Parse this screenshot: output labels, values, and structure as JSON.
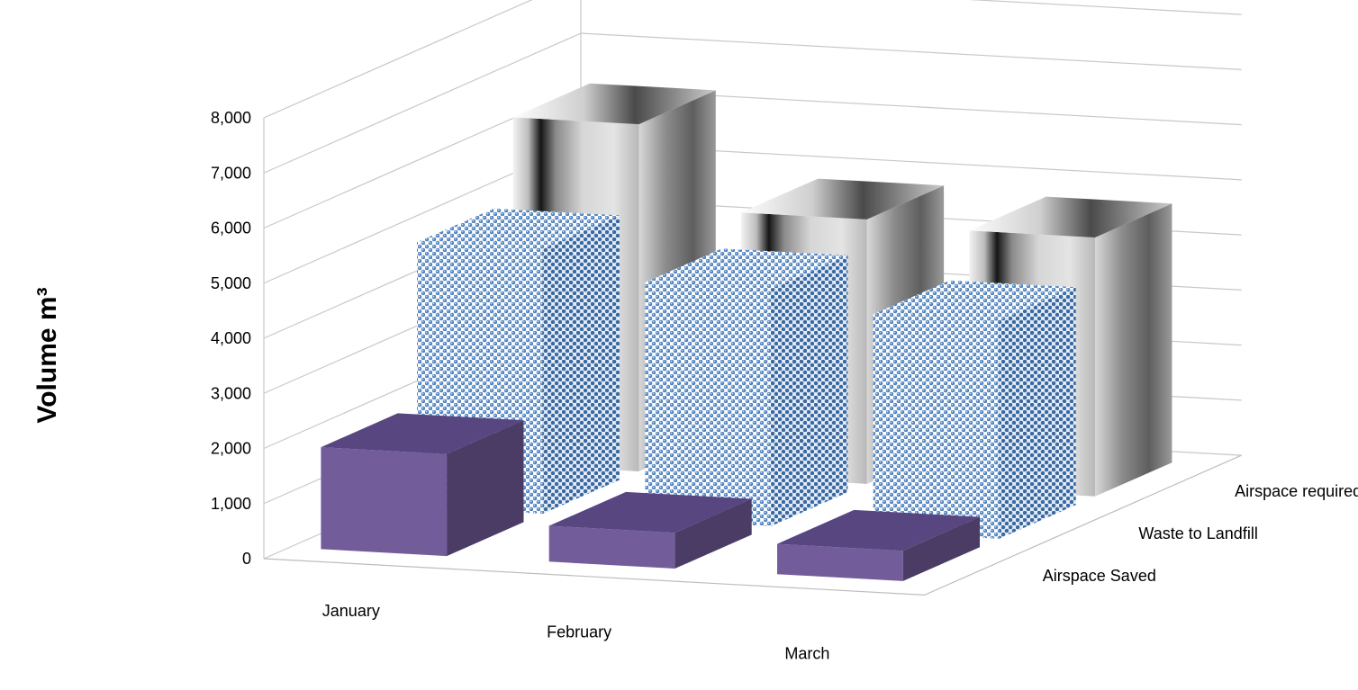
{
  "chart_data": {
    "type": "bar",
    "subtype": "3d-column",
    "categories": [
      "January",
      "February",
      "March"
    ],
    "series": [
      {
        "name": "Airspace Saved",
        "values": [
          1850,
          650,
          550
        ],
        "color": "#725C99",
        "fill": "solid"
      },
      {
        "name": "Waste to Landfill",
        "values": [
          4800,
          4300,
          3950
        ],
        "color": "#4F81BD",
        "fill": "pattern"
      },
      {
        "name": "Airspace required",
        "values": [
          6300,
          4800,
          4700
        ],
        "color": "#A6A6A6",
        "fill": "gradient"
      }
    ],
    "ylabel": "Volume m³",
    "yticks": [
      "0",
      "1,000",
      "2,000",
      "3,000",
      "4,000",
      "5,000",
      "6,000",
      "7,000",
      "8,000"
    ],
    "ylim": [
      0,
      8000
    ],
    "grid": true,
    "legend": "series labels on depth axis (right)"
  }
}
